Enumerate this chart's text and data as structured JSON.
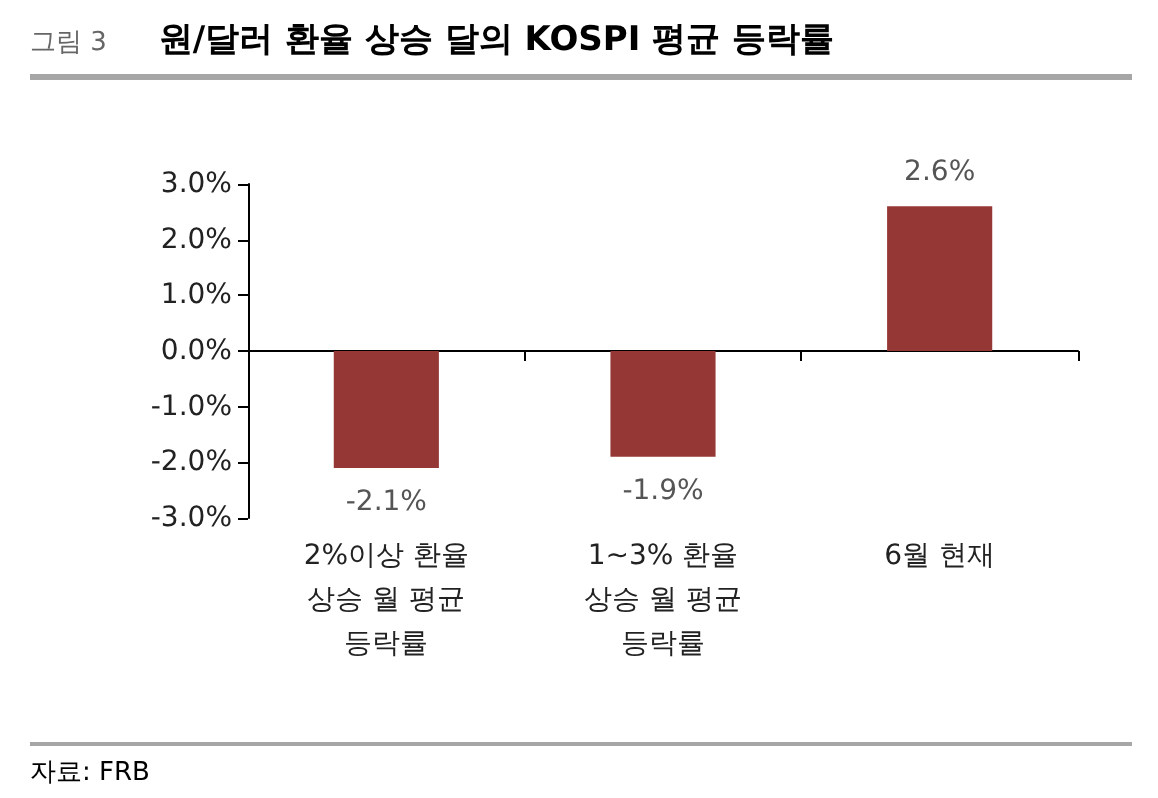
{
  "chart_data": {
    "type": "bar",
    "title": "원/달러 환율 상승 달의 KOSPI 평균 등락률",
    "annotations": [
      "그림 3",
      "자료: FRB"
    ],
    "categories": [
      "2%이상 환율 상승 월 평균 등락률",
      "1~3% 환율 상승 월 평균 등락률",
      "6월 현재"
    ],
    "values": [
      -2.1,
      -1.9,
      2.6
    ],
    "color": "#953735",
    "value_labels": [
      "-2.1%",
      "-1.9%",
      "2.6%"
    ],
    "ylim": [
      -3,
      3
    ],
    "yticks": [
      {
        "value": -3,
        "label": "-3.0%"
      },
      {
        "value": -2,
        "label": "-2.0%"
      },
      {
        "value": -1,
        "label": "-1.0%"
      },
      {
        "value": 0,
        "label": "0.0%"
      },
      {
        "value": 1,
        "label": "1.0%"
      },
      {
        "value": 2,
        "label": "2.0%"
      },
      {
        "value": 3,
        "label": "3.0%"
      }
    ]
  }
}
